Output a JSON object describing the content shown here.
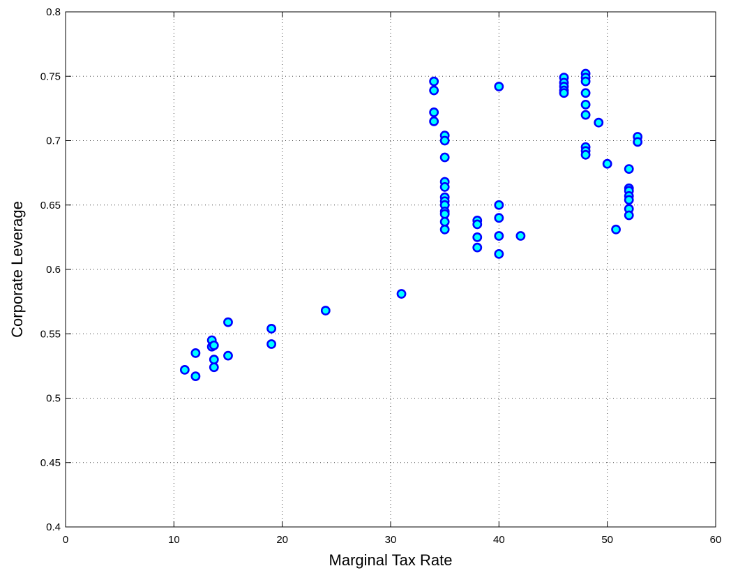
{
  "chart_data": {
    "type": "scatter",
    "title": "",
    "xlabel": "Marginal Tax Rate",
    "ylabel": "Corporate Leverage",
    "xlim": [
      0,
      60
    ],
    "ylim": [
      0.4,
      0.8
    ],
    "xticks": [
      0,
      10,
      20,
      30,
      40,
      50,
      60
    ],
    "yticks": [
      0.4,
      0.45,
      0.5,
      0.55,
      0.6,
      0.65,
      0.7,
      0.75,
      0.8
    ],
    "xtick_labels": [
      "0",
      "10",
      "20",
      "30",
      "40",
      "50",
      "60"
    ],
    "ytick_labels": [
      "0.4",
      "0.45",
      "0.5",
      "0.55",
      "0.6",
      "0.65",
      "0.7",
      "0.75",
      "0.8"
    ],
    "grid": true,
    "marker_fill": "#00ffff",
    "marker_edge": "#0000ff",
    "points": [
      [
        11.0,
        0.522
      ],
      [
        12.0,
        0.535
      ],
      [
        12.0,
        0.517
      ],
      [
        13.5,
        0.545
      ],
      [
        13.5,
        0.54
      ],
      [
        13.7,
        0.541
      ],
      [
        13.7,
        0.53
      ],
      [
        13.7,
        0.524
      ],
      [
        15.0,
        0.559
      ],
      [
        15.0,
        0.533
      ],
      [
        19.0,
        0.554
      ],
      [
        19.0,
        0.542
      ],
      [
        24.0,
        0.568
      ],
      [
        31.0,
        0.581
      ],
      [
        34.0,
        0.746
      ],
      [
        34.0,
        0.739
      ],
      [
        34.0,
        0.722
      ],
      [
        34.0,
        0.715
      ],
      [
        35.0,
        0.704
      ],
      [
        35.0,
        0.7
      ],
      [
        35.0,
        0.687
      ],
      [
        35.0,
        0.668
      ],
      [
        35.0,
        0.664
      ],
      [
        35.0,
        0.656
      ],
      [
        35.0,
        0.653
      ],
      [
        35.0,
        0.65
      ],
      [
        35.0,
        0.645
      ],
      [
        35.0,
        0.643
      ],
      [
        35.0,
        0.637
      ],
      [
        35.0,
        0.631
      ],
      [
        38.0,
        0.638
      ],
      [
        38.0,
        0.635
      ],
      [
        38.0,
        0.625
      ],
      [
        38.0,
        0.617
      ],
      [
        40.0,
        0.742
      ],
      [
        40.0,
        0.65
      ],
      [
        40.0,
        0.64
      ],
      [
        40.0,
        0.626
      ],
      [
        40.0,
        0.612
      ],
      [
        42.0,
        0.626
      ],
      [
        46.0,
        0.749
      ],
      [
        46.0,
        0.745
      ],
      [
        46.0,
        0.742
      ],
      [
        46.0,
        0.739
      ],
      [
        46.0,
        0.737
      ],
      [
        48.0,
        0.752
      ],
      [
        48.0,
        0.749
      ],
      [
        48.0,
        0.746
      ],
      [
        48.0,
        0.737
      ],
      [
        48.0,
        0.728
      ],
      [
        48.0,
        0.72
      ],
      [
        48.0,
        0.695
      ],
      [
        48.0,
        0.692
      ],
      [
        48.0,
        0.689
      ],
      [
        49.2,
        0.714
      ],
      [
        50.0,
        0.682
      ],
      [
        50.8,
        0.631
      ],
      [
        52.0,
        0.678
      ],
      [
        52.0,
        0.663
      ],
      [
        52.0,
        0.661
      ],
      [
        52.0,
        0.657
      ],
      [
        52.0,
        0.654
      ],
      [
        52.0,
        0.647
      ],
      [
        52.0,
        0.642
      ],
      [
        52.8,
        0.703
      ],
      [
        52.8,
        0.699
      ]
    ]
  }
}
